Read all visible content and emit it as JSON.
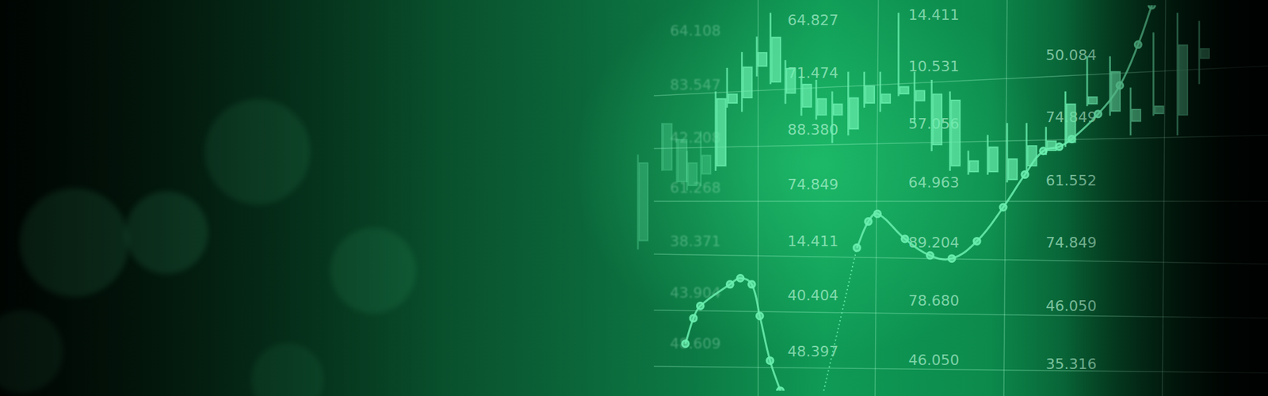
{
  "chart_data": {
    "type": "candlestick",
    "xlim": [
      0,
      100
    ],
    "ylim": [
      0,
      100
    ],
    "tick_labels": false,
    "grid": false,
    "color": "#6cf0b0",
    "candles": {
      "x": [
        50.4,
        52.5,
        53.8,
        54.7,
        55.9,
        57.2,
        58.2,
        59.5,
        60.8,
        62.0,
        63.3,
        64.7,
        66.0,
        67.4,
        68.8,
        70.2,
        71.6,
        73.2,
        74.6,
        76.1,
        77.7,
        79.3,
        81.0,
        82.7,
        84.4,
        86.1,
        87.8,
        89.7,
        91.7,
        93.5,
        95.5,
        97.6,
        99.5
      ],
      "high": [
        61.2,
        69.4,
        65.3,
        62.2,
        67.3,
        77.6,
        83.7,
        87.8,
        91.8,
        98.0,
        85.7,
        81.6,
        80.6,
        77.6,
        82.7,
        82.7,
        82.7,
        98.0,
        82.7,
        80.6,
        77.6,
        62.2,
        66.3,
        69.4,
        69.4,
        68.4,
        77.6,
        86.7,
        86.7,
        78.6,
        92.9,
        98.0,
        95.9
      ],
      "low": [
        36.7,
        57.1,
        54.1,
        52.0,
        53.1,
        57.1,
        73.5,
        72.4,
        81.6,
        79.6,
        74.5,
        71.4,
        70.4,
        64.3,
        66.3,
        73.5,
        72.4,
        76.5,
        69.4,
        62.2,
        57.1,
        56.1,
        56.1,
        54.1,
        57.1,
        61.2,
        63.3,
        73.9,
        71.4,
        66.3,
        71.4,
        66.3,
        79.6
      ],
      "open": [
        38.8,
        57.1,
        54.1,
        53.1,
        56.1,
        58.2,
        74.5,
        75.9,
        84.1,
        80.0,
        77.1,
        73.5,
        71.4,
        71.4,
        67.8,
        74.5,
        74.5,
        76.9,
        75.1,
        63.7,
        58.2,
        56.7,
        56.7,
        54.7,
        58.2,
        62.2,
        64.3,
        74.3,
        72.4,
        69.8,
        71.8,
        71.4,
        86.1
      ],
      "close": [
        59.2,
        69.4,
        65.3,
        59.2,
        61.2,
        75.9,
        77.1,
        84.1,
        87.8,
        91.8,
        83.7,
        79.6,
        75.9,
        74.5,
        76.1,
        79.2,
        77.1,
        79.0,
        78.0,
        77.1,
        75.5,
        59.8,
        63.3,
        60.2,
        63.7,
        64.9,
        74.5,
        76.3,
        82.9,
        73.1,
        73.9,
        89.8,
        88.8
      ]
    },
    "lines": [
      {
        "line_style": "solid",
        "marker": "circle",
        "x": [
          54.5,
          55.2,
          55.8,
          58.4,
          59.3,
          60.3,
          61.0,
          61.9,
          62.8,
          64.7,
          69.5,
          70.5,
          71.3,
          73.7,
          75.9,
          77.8,
          80.0,
          82.3,
          84.2,
          85.8,
          87.2,
          88.3,
          90.6,
          92.5,
          94.1,
          95.3
        ],
        "values": [
          12.2,
          18.8,
          22.0,
          27.6,
          29.2,
          27.6,
          19.4,
          7.8,
          0.0,
          null,
          37.1,
          43.9,
          45.9,
          39.4,
          35.1,
          34.3,
          38.8,
          47.6,
          56.1,
          62.2,
          63.3,
          65.3,
          71.8,
          79.2,
          89.8,
          100.0
        ]
      },
      {
        "line_style": "dotted",
        "x": [
          66.6,
          68.2,
          69.5
        ],
        "values": [
          0.0,
          20.4,
          37.1
        ]
      }
    ]
  },
  "grid_labels": [
    [
      "64.108",
      "83.547",
      "42.208",
      "61.268",
      "38.371",
      "43.904",
      "48.609"
    ],
    [
      "64.827",
      "71.474",
      "88.380",
      "74.849",
      "14.411",
      "40.404",
      "48.397"
    ],
    [
      "14.411",
      "10.531",
      "57.056",
      "64.963",
      "89.204",
      "78.680",
      "46.050"
    ],
    [
      "50.084",
      "74.849",
      "61.552",
      "74.849",
      "46.050",
      "35.316"
    ]
  ]
}
